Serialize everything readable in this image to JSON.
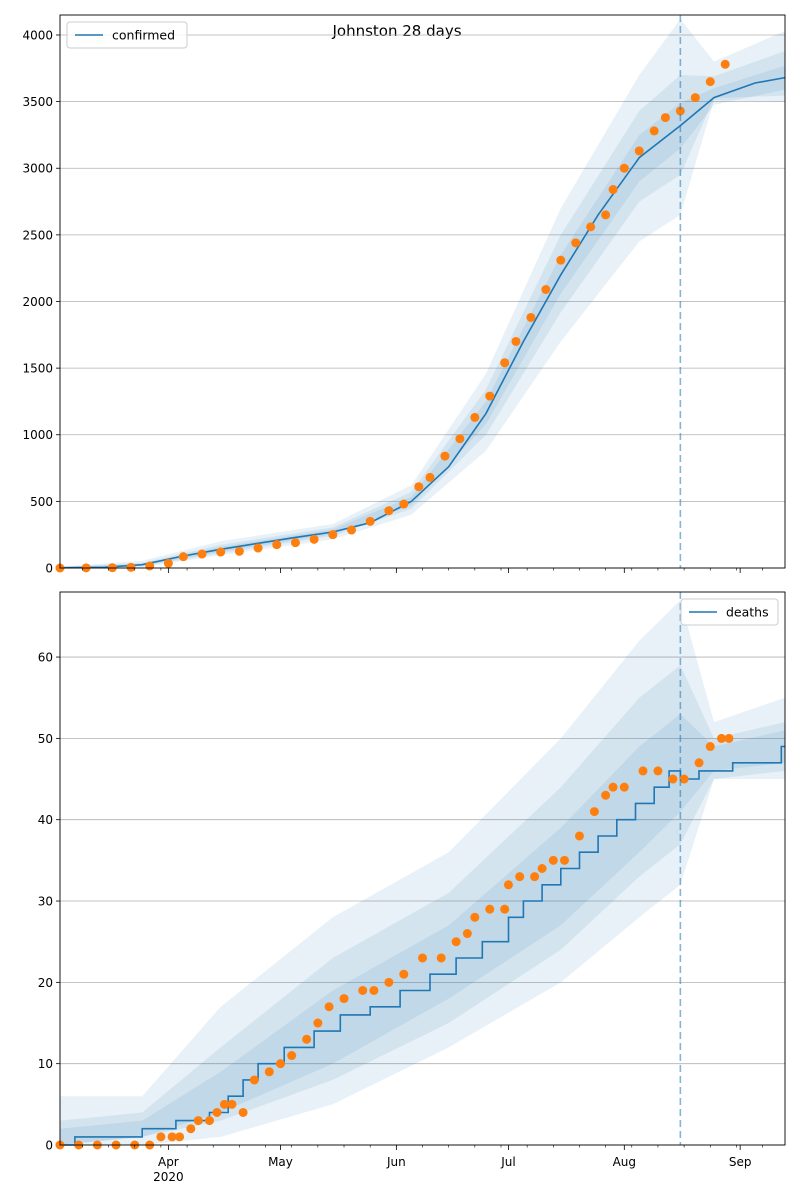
{
  "title": "Johnston 28 days",
  "colors": {
    "model": "#1f77b4",
    "observed": "#ff7f0e",
    "band": "#1f77b4",
    "grid": "#b0b0b0",
    "forecast_line": "#1f77b4"
  },
  "x_axis": {
    "tick_labels": [
      "Apr",
      "May",
      "Jun",
      "Jul",
      "Aug",
      "Sep"
    ],
    "year_label": "2020"
  },
  "chart_data": [
    {
      "type": "line",
      "legend": "confirmed",
      "legend_position": "top-left",
      "grid": "horizontal",
      "xlim": [
        "2020-03-03",
        "2020-09-13"
      ],
      "ylim": [
        0,
        4150
      ],
      "y_ticks": [
        0,
        500,
        1000,
        1500,
        2000,
        2500,
        3000,
        3500,
        4000
      ],
      "x_ticks": [
        "2020-04-01",
        "2020-05-01",
        "2020-06-01",
        "2020-07-01",
        "2020-08-01",
        "2020-09-01"
      ],
      "forecast_start": "2020-08-16",
      "model": {
        "x": [
          "2020-03-03",
          "2020-03-15",
          "2020-03-25",
          "2020-04-05",
          "2020-04-15",
          "2020-04-25",
          "2020-05-05",
          "2020-05-15",
          "2020-05-25",
          "2020-06-05",
          "2020-06-15",
          "2020-06-25",
          "2020-07-05",
          "2020-07-15",
          "2020-07-25",
          "2020-08-05",
          "2020-08-16",
          "2020-08-25",
          "2020-09-05",
          "2020-09-13"
        ],
        "y": [
          2,
          5,
          25,
          90,
          140,
          185,
          230,
          270,
          340,
          500,
          760,
          1160,
          1700,
          2200,
          2650,
          3080,
          3320,
          3530,
          3640,
          3680
        ]
      },
      "bands": [
        {
          "x": [
            "2020-03-03",
            "2020-03-25",
            "2020-04-15",
            "2020-05-15",
            "2020-06-05",
            "2020-06-25",
            "2020-07-15",
            "2020-08-05",
            "2020-08-16",
            "2020-08-25",
            "2020-09-13"
          ],
          "upper": [
            10,
            55,
            200,
            330,
            620,
            1460,
            2700,
            3700,
            4120,
            3800,
            4030
          ],
          "lower": [
            0,
            5,
            95,
            215,
            400,
            880,
            1700,
            2450,
            2650,
            3510,
            3500
          ]
        },
        {
          "x": [
            "2020-03-03",
            "2020-03-25",
            "2020-04-15",
            "2020-05-15",
            "2020-06-05",
            "2020-06-25",
            "2020-07-15",
            "2020-08-05",
            "2020-08-16",
            "2020-08-25",
            "2020-09-13"
          ],
          "upper": [
            6,
            40,
            175,
            305,
            570,
            1340,
            2500,
            3430,
            3700,
            3690,
            3880
          ],
          "lower": [
            0,
            12,
            110,
            240,
            445,
            1000,
            1920,
            2750,
            2950,
            3525,
            3545
          ]
        },
        {
          "x": [
            "2020-03-03",
            "2020-03-25",
            "2020-04-15",
            "2020-05-15",
            "2020-06-05",
            "2020-06-25",
            "2020-07-15",
            "2020-08-05",
            "2020-08-16",
            "2020-08-25",
            "2020-09-13"
          ],
          "upper": [
            4,
            32,
            158,
            290,
            535,
            1250,
            2350,
            3250,
            3490,
            3600,
            3770
          ],
          "lower": [
            0,
            18,
            122,
            252,
            470,
            1080,
            2060,
            2900,
            3150,
            3475,
            3590
          ]
        }
      ],
      "observed": {
        "x": [
          "2020-03-03",
          "2020-03-10",
          "2020-03-17",
          "2020-03-22",
          "2020-03-27",
          "2020-04-01",
          "2020-04-05",
          "2020-04-10",
          "2020-04-15",
          "2020-04-20",
          "2020-04-25",
          "2020-04-30",
          "2020-05-05",
          "2020-05-10",
          "2020-05-15",
          "2020-05-20",
          "2020-05-25",
          "2020-05-30",
          "2020-06-03",
          "2020-06-07",
          "2020-06-10",
          "2020-06-14",
          "2020-06-18",
          "2020-06-22",
          "2020-06-26",
          "2020-06-30",
          "2020-07-03",
          "2020-07-07",
          "2020-07-11",
          "2020-07-15",
          "2020-07-19",
          "2020-07-23",
          "2020-07-27",
          "2020-07-29",
          "2020-08-01",
          "2020-08-05",
          "2020-08-09",
          "2020-08-12",
          "2020-08-16",
          "2020-08-20",
          "2020-08-24",
          "2020-08-28"
        ],
        "y": [
          0,
          1,
          2,
          5,
          15,
          35,
          85,
          105,
          120,
          125,
          150,
          175,
          190,
          215,
          250,
          285,
          350,
          430,
          480,
          610,
          680,
          840,
          970,
          1130,
          1290,
          1540,
          1700,
          1880,
          2090,
          2310,
          2440,
          2560,
          2650,
          2840,
          3000,
          3130,
          3280,
          3380,
          3430,
          3530,
          3650,
          3780
        ]
      }
    },
    {
      "type": "line",
      "legend": "deaths",
      "legend_position": "top-right",
      "grid": "horizontal",
      "xlim": [
        "2020-03-03",
        "2020-09-13"
      ],
      "ylim": [
        0,
        68
      ],
      "y_ticks": [
        0,
        10,
        20,
        30,
        40,
        50,
        60
      ],
      "x_ticks": [
        "2020-04-01",
        "2020-05-01",
        "2020-06-01",
        "2020-07-01",
        "2020-08-01",
        "2020-09-01"
      ],
      "forecast_start": "2020-08-16",
      "model": {
        "step": true,
        "x": [
          "2020-03-03",
          "2020-03-07",
          "2020-03-25",
          "2020-04-03",
          "2020-04-12",
          "2020-04-17",
          "2020-04-21",
          "2020-04-25",
          "2020-05-02",
          "2020-05-10",
          "2020-05-17",
          "2020-05-25",
          "2020-06-02",
          "2020-06-10",
          "2020-06-17",
          "2020-06-24",
          "2020-07-01",
          "2020-07-05",
          "2020-07-10",
          "2020-07-15",
          "2020-07-20",
          "2020-07-25",
          "2020-07-30",
          "2020-08-04",
          "2020-08-09",
          "2020-08-13",
          "2020-08-16",
          "2020-08-21",
          "2020-08-30",
          "2020-09-12"
        ],
        "y": [
          0,
          1,
          2,
          3,
          4,
          6,
          8,
          10,
          12,
          14,
          16,
          17,
          19,
          21,
          23,
          25,
          28,
          30,
          32,
          34,
          36,
          38,
          40,
          42,
          44,
          46,
          45,
          46,
          47,
          49
        ]
      },
      "bands": [
        {
          "x": [
            "2020-03-03",
            "2020-03-25",
            "2020-04-15",
            "2020-05-15",
            "2020-06-15",
            "2020-07-15",
            "2020-08-05",
            "2020-08-16",
            "2020-08-25",
            "2020-09-13"
          ],
          "upper": [
            6,
            6,
            17,
            28,
            36,
            50,
            62,
            67,
            52,
            55
          ],
          "lower": [
            0,
            0,
            1,
            5,
            12,
            20,
            28,
            32,
            45,
            45
          ]
        },
        {
          "x": [
            "2020-03-03",
            "2020-03-25",
            "2020-04-15",
            "2020-05-15",
            "2020-06-15",
            "2020-07-15",
            "2020-08-05",
            "2020-08-16",
            "2020-08-25",
            "2020-09-13"
          ],
          "upper": [
            3,
            4,
            12,
            23,
            31,
            44,
            55,
            59,
            50,
            52
          ],
          "lower": [
            0,
            1,
            3,
            8,
            15,
            24,
            33,
            37,
            45,
            46
          ]
        },
        {
          "x": [
            "2020-03-03",
            "2020-03-25",
            "2020-04-15",
            "2020-05-15",
            "2020-06-15",
            "2020-07-15",
            "2020-08-05",
            "2020-08-16",
            "2020-08-25",
            "2020-09-13"
          ],
          "upper": [
            2,
            3,
            9,
            19,
            27,
            39,
            49,
            53,
            49,
            51
          ],
          "lower": [
            0,
            1,
            4,
            10,
            18,
            27,
            36,
            41,
            46,
            47
          ]
        }
      ],
      "observed": {
        "x": [
          "2020-03-03",
          "2020-03-08",
          "2020-03-13",
          "2020-03-18",
          "2020-03-23",
          "2020-03-27",
          "2020-03-30",
          "2020-04-02",
          "2020-04-04",
          "2020-04-07",
          "2020-04-09",
          "2020-04-12",
          "2020-04-14",
          "2020-04-16",
          "2020-04-18",
          "2020-04-21",
          "2020-04-24",
          "2020-04-28",
          "2020-05-01",
          "2020-05-04",
          "2020-05-08",
          "2020-05-11",
          "2020-05-14",
          "2020-05-18",
          "2020-05-23",
          "2020-05-26",
          "2020-05-30",
          "2020-06-03",
          "2020-06-08",
          "2020-06-13",
          "2020-06-17",
          "2020-06-20",
          "2020-06-22",
          "2020-06-26",
          "2020-06-30",
          "2020-07-01",
          "2020-07-04",
          "2020-07-08",
          "2020-07-10",
          "2020-07-13",
          "2020-07-16",
          "2020-07-20",
          "2020-07-24",
          "2020-07-27",
          "2020-07-29",
          "2020-08-01",
          "2020-08-06",
          "2020-08-10",
          "2020-08-14",
          "2020-08-17",
          "2020-08-21",
          "2020-08-24",
          "2020-08-27",
          "2020-08-29"
        ],
        "y": [
          0,
          0,
          0,
          0,
          0,
          0,
          1,
          1,
          1,
          2,
          3,
          3,
          4,
          5,
          5,
          4,
          8,
          9,
          10,
          11,
          13,
          15,
          17,
          18,
          19,
          19,
          20,
          21,
          23,
          23,
          25,
          26,
          28,
          29,
          29,
          32,
          33,
          33,
          34,
          35,
          35,
          38,
          41,
          43,
          44,
          44,
          46,
          46,
          45,
          45,
          47,
          49,
          50,
          50
        ]
      }
    }
  ]
}
